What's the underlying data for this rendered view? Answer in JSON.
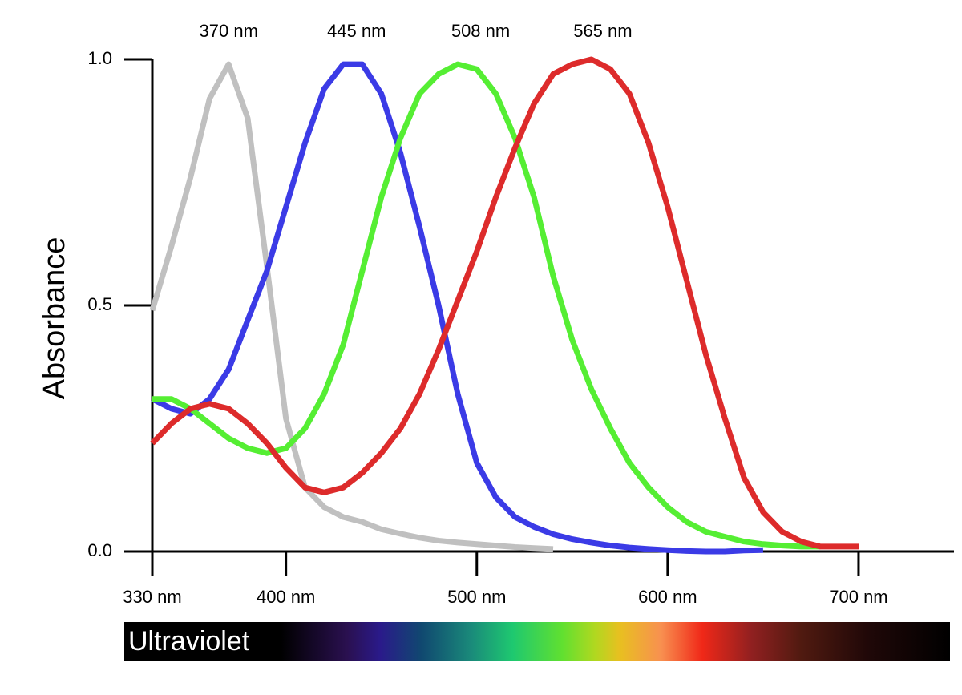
{
  "chart_data": {
    "type": "line",
    "y_label": "Absorbance",
    "xlim": [
      330,
      750
    ],
    "ylim": [
      0,
      1
    ],
    "xticks": [
      {
        "value": 330,
        "label": "330 nm"
      },
      {
        "value": 400,
        "label": "400 nm"
      },
      {
        "value": 500,
        "label": "500 nm"
      },
      {
        "value": 600,
        "label": "600 nm"
      },
      {
        "value": 700,
        "label": "700 nm"
      }
    ],
    "yticks": [
      {
        "value": 0,
        "label": "0.0"
      },
      {
        "value": 0.5,
        "label": "0.5"
      },
      {
        "value": 1,
        "label": "1.0"
      }
    ],
    "annotations": [
      {
        "text": "370 nm",
        "x": 370
      },
      {
        "text": "445 nm",
        "x": 437
      },
      {
        "text": "508 nm",
        "x": 502
      },
      {
        "text": "565 nm",
        "x": 566
      }
    ],
    "spectrum_label": "Ultraviolet",
    "series": [
      {
        "color": "#c0c0c0",
        "x": [
          330,
          340,
          350,
          360,
          370,
          380,
          390,
          400,
          410,
          420,
          430,
          440,
          450,
          460,
          470,
          480,
          490,
          500,
          510,
          520,
          530,
          540
        ],
        "values": [
          0.49,
          0.62,
          0.76,
          0.92,
          0.99,
          0.88,
          0.58,
          0.27,
          0.13,
          0.09,
          0.07,
          0.06,
          0.045,
          0.036,
          0.028,
          0.022,
          0.018,
          0.015,
          0.012,
          0.009,
          0.007,
          0.005
        ]
      },
      {
        "color": "#3b3be6",
        "x": [
          330,
          340,
          350,
          360,
          370,
          380,
          390,
          400,
          410,
          420,
          430,
          440,
          450,
          460,
          470,
          480,
          490,
          500,
          510,
          520,
          530,
          540,
          550,
          560,
          570,
          580,
          590,
          600,
          610,
          620,
          630,
          640,
          650
        ],
        "values": [
          0.31,
          0.29,
          0.28,
          0.31,
          0.37,
          0.47,
          0.57,
          0.7,
          0.83,
          0.94,
          0.99,
          0.99,
          0.93,
          0.81,
          0.66,
          0.5,
          0.32,
          0.18,
          0.11,
          0.07,
          0.05,
          0.035,
          0.025,
          0.018,
          0.012,
          0.008,
          0.005,
          0.003,
          0.001,
          0,
          0,
          0.002,
          0.003
        ]
      },
      {
        "color": "#55ee33",
        "x": [
          330,
          340,
          350,
          360,
          370,
          380,
          390,
          400,
          410,
          420,
          430,
          440,
          450,
          460,
          470,
          480,
          490,
          500,
          510,
          520,
          530,
          540,
          550,
          560,
          570,
          580,
          590,
          600,
          610,
          620,
          630,
          640,
          650,
          660,
          670,
          680
        ],
        "values": [
          0.31,
          0.31,
          0.29,
          0.26,
          0.23,
          0.21,
          0.2,
          0.21,
          0.25,
          0.32,
          0.42,
          0.57,
          0.72,
          0.84,
          0.93,
          0.97,
          0.99,
          0.98,
          0.93,
          0.84,
          0.72,
          0.56,
          0.43,
          0.33,
          0.25,
          0.18,
          0.13,
          0.09,
          0.06,
          0.04,
          0.03,
          0.02,
          0.015,
          0.012,
          0.01,
          0.01
        ]
      },
      {
        "color": "#dd2b2b",
        "x": [
          330,
          340,
          350,
          360,
          370,
          380,
          390,
          400,
          410,
          420,
          430,
          440,
          450,
          460,
          470,
          480,
          490,
          500,
          510,
          520,
          530,
          540,
          550,
          560,
          570,
          580,
          590,
          600,
          610,
          620,
          630,
          640,
          650,
          660,
          670,
          680,
          690,
          700
        ],
        "values": [
          0.22,
          0.26,
          0.29,
          0.3,
          0.29,
          0.26,
          0.22,
          0.17,
          0.13,
          0.12,
          0.13,
          0.16,
          0.2,
          0.25,
          0.32,
          0.41,
          0.51,
          0.61,
          0.72,
          0.82,
          0.91,
          0.97,
          0.99,
          1.0,
          0.98,
          0.93,
          0.83,
          0.7,
          0.55,
          0.4,
          0.27,
          0.15,
          0.08,
          0.04,
          0.02,
          0.01,
          0.01,
          0.01
        ]
      }
    ]
  }
}
